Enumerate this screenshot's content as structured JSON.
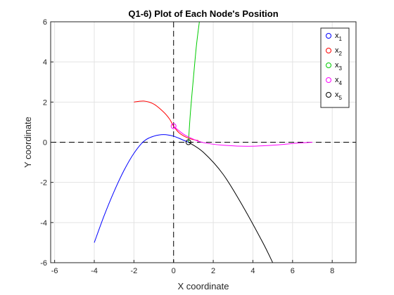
{
  "chart_data": {
    "type": "line",
    "title": "Q1-6) Plot of Each Node's Position",
    "xlabel": "X coordinate",
    "ylabel": "Y coordinate",
    "xlim": [
      -6.2,
      9.2
    ],
    "ylim": [
      -6,
      6
    ],
    "xticks": [
      "-6",
      "-4",
      "-2",
      "0",
      "2",
      "4",
      "6",
      "8"
    ],
    "yticks": [
      "-6",
      "-4",
      "-2",
      "0",
      "2",
      "4",
      "6"
    ],
    "grid": true,
    "legend_position": "top-right",
    "series": [
      {
        "name": "x",
        "sub": "1",
        "color": "#0000ff",
        "points": [
          [
            -4,
            -5
          ],
          [
            -3.5,
            -3.65
          ],
          [
            -3,
            -2.45
          ],
          [
            -2.5,
            -1.4
          ],
          [
            -2,
            -0.55
          ],
          [
            -1.5,
            0.05
          ],
          [
            -1,
            0.3
          ],
          [
            -0.5,
            0.38
          ],
          [
            0,
            0.3
          ],
          [
            0.5,
            0.1
          ],
          [
            0.75,
            0
          ]
        ]
      },
      {
        "name": "x",
        "sub": "2",
        "color": "#ff0000",
        "points": [
          [
            -2,
            2
          ],
          [
            -1.5,
            2.05
          ],
          [
            -1,
            1.9
          ],
          [
            -0.5,
            1.5
          ],
          [
            -0.2,
            1.15
          ],
          [
            0,
            0.8
          ],
          [
            0.3,
            0.45
          ],
          [
            0.75,
            0.2
          ],
          [
            1.25,
            0.08
          ]
        ]
      },
      {
        "name": "x",
        "sub": "3",
        "color": "#00cc00",
        "points": [
          [
            0.75,
            0
          ],
          [
            0.85,
            1.5
          ],
          [
            1,
            3.2
          ],
          [
            1.15,
            4.8
          ],
          [
            1.3,
            6
          ]
        ]
      },
      {
        "name": "x",
        "sub": "4",
        "color": "#ff00ff",
        "points": [
          [
            0,
            0.8
          ],
          [
            0.5,
            0.4
          ],
          [
            1,
            0.15
          ],
          [
            1.5,
            -0.02
          ],
          [
            2.5,
            -0.15
          ],
          [
            3.7,
            -0.2
          ],
          [
            5,
            -0.15
          ],
          [
            6.2,
            -0.05
          ],
          [
            7,
            0
          ]
        ]
      },
      {
        "name": "x",
        "sub": "5",
        "color": "#000000",
        "points": [
          [
            0.75,
            0
          ],
          [
            1.5,
            -0.5
          ],
          [
            2.5,
            -1.6
          ],
          [
            3.5,
            -3.2
          ],
          [
            4.5,
            -5
          ],
          [
            5,
            -6
          ]
        ]
      }
    ],
    "markers": [
      {
        "x": 0,
        "y": 0.8,
        "color": "#ff00ff"
      },
      {
        "x": 0.75,
        "y": 0,
        "color": "#000000"
      }
    ],
    "dashed_reference_lines": [
      {
        "orientation": "horizontal",
        "value": 0
      },
      {
        "orientation": "vertical",
        "value": 0
      }
    ]
  }
}
